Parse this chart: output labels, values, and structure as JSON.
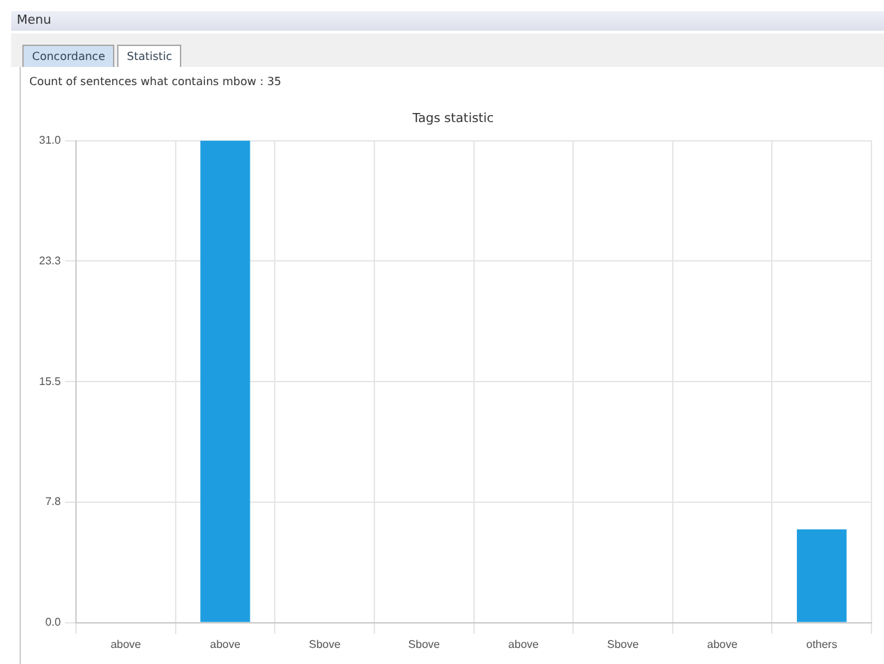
{
  "chart_data": {
    "type": "bar",
    "title": "Tags statistic",
    "subtitle": "Count of sentences what contains mbow : 35",
    "annotations": [
      "Menu",
      "Concordance",
      "Statistic"
    ],
    "categories": [
      "above",
      "above",
      "Sbove",
      "Sbove",
      "above",
      "Sbove",
      "above",
      "others"
    ],
    "values": [
      0,
      31,
      0,
      0,
      0,
      0,
      0,
      6
    ],
    "color": "#1e9ee0",
    "ylim": [
      0,
      31
    ],
    "yticks": [
      {
        "value": 0,
        "label": "0.0"
      },
      {
        "value": 7.75,
        "label": "7.8"
      },
      {
        "value": 15.5,
        "label": "15.5"
      },
      {
        "value": 23.25,
        "label": "23.3"
      },
      {
        "value": 31,
        "label": "31.0"
      }
    ],
    "grid": true,
    "legend": false
  }
}
